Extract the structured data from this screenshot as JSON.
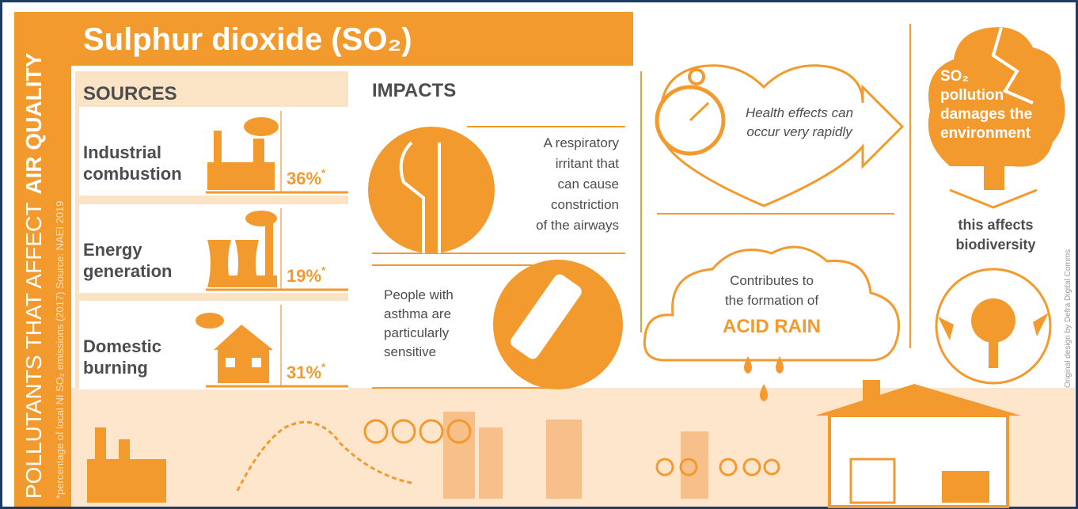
{
  "side_banner": {
    "light": "POLLUTANTS THAT AFFECT",
    "bold": "AIR QUALITY"
  },
  "footnote": "*percentage of local NI SO₂ emissions (2017) Source: NAEI 2019",
  "title": "Sulphur dioxide (SO₂)",
  "sources": {
    "heading": "SOURCES",
    "items": [
      {
        "lines": [
          "Industrial",
          "combustion"
        ],
        "percent": "36%",
        "mark": "*"
      },
      {
        "lines": [
          "Energy",
          "generation"
        ],
        "percent": "19%",
        "mark": "*"
      },
      {
        "lines": [
          "Domestic",
          "burning"
        ],
        "percent": "31%",
        "mark": "*"
      }
    ]
  },
  "impacts": {
    "heading": "IMPACTS",
    "respiratory": {
      "lines": [
        "A respiratory",
        "irritant that",
        "can cause",
        "constriction",
        "of the airways"
      ]
    },
    "asthma": {
      "lines": [
        "People with",
        "asthma are",
        "particularly",
        "sensitive"
      ]
    },
    "rapid": {
      "lines": [
        "Health effects can",
        "occur very rapidly"
      ]
    },
    "acid_rain": {
      "lines": [
        "Contributes to",
        "the formation of"
      ],
      "emphasis": "ACID RAIN"
    }
  },
  "environment": {
    "tree_lines": [
      "SO₂",
      "pollution",
      "damages the",
      "environment"
    ],
    "biodiversity_lines": [
      "this affects",
      "biodiversity"
    ]
  },
  "credit": "Original design by Defra Digital Comms"
}
